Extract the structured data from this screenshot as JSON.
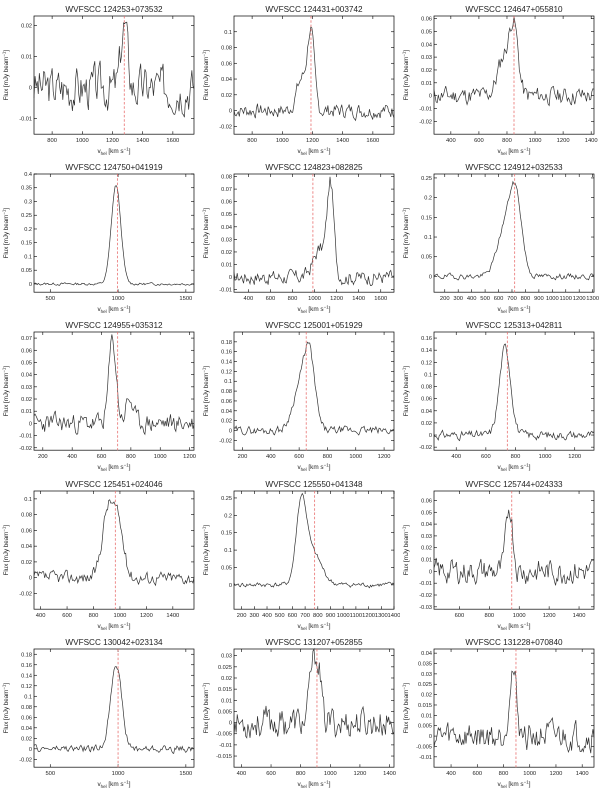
{
  "axis_text": {
    "xlabel_main": "v",
    "xlabel_sub": "hel",
    "xlabel_unit": "[km s",
    "xlabel_sup": "−1",
    "xlabel_close": "]",
    "ylabel_main": "Flux [mJy beam",
    "ylabel_sup": "−1",
    "ylabel_close": "]"
  },
  "colors": {
    "spectrum": "#333333",
    "marker": "#e8706f",
    "axes": "#000000"
  },
  "chart_data": [
    {
      "type": "line",
      "title": "WVFSCC 124253+073532",
      "xlim": [
        680,
        1740
      ],
      "ylim": [
        -0.015,
        0.023
      ],
      "xticks": [
        800,
        1000,
        1200,
        1400,
        1600
      ],
      "yticks": [
        -0.01,
        0,
        0.01,
        0.02
      ],
      "marker_v": 1278,
      "grid": false,
      "features": [
        [
          1278,
          0.02,
          22
        ]
      ],
      "noise": 0.006,
      "seed": 3
    },
    {
      "type": "line",
      "title": "WVFSCC 124431+003742",
      "xlim": [
        680,
        1740
      ],
      "ylim": [
        -0.03,
        0.12
      ],
      "xticks": [
        800,
        1000,
        1200,
        1400,
        1600
      ],
      "yticks": [
        -0.02,
        0,
        0.02,
        0.04,
        0.06,
        0.08,
        0.1
      ],
      "marker_v": 1190,
      "grid": false,
      "features": [
        [
          1130,
          0.04,
          35
        ],
        [
          1190,
          0.095,
          22
        ]
      ],
      "noise": 0.008,
      "seed": 7
    },
    {
      "type": "line",
      "title": "WVFSCC 124647+055810",
      "xlim": [
        280,
        1420
      ],
      "ylim": [
        -0.03,
        0.062
      ],
      "xticks": [
        400,
        600,
        800,
        1000,
        1200,
        1400
      ],
      "yticks": [
        -0.02,
        -0.01,
        0,
        0.01,
        0.02,
        0.03,
        0.04,
        0.05,
        0.06
      ],
      "marker_v": 850,
      "grid": false,
      "features": [
        [
          780,
          0.03,
          45
        ],
        [
          850,
          0.05,
          30
        ]
      ],
      "noise": 0.006,
      "seed": 11
    },
    {
      "type": "line",
      "title": "WVFSCC 124750+041919",
      "xlim": [
        380,
        1560
      ],
      "ylim": [
        -0.03,
        0.4
      ],
      "xticks": [
        500,
        1000,
        1500
      ],
      "yticks": [
        0,
        0.05,
        0.1,
        0.15,
        0.2,
        0.25,
        0.3,
        0.35,
        0.4
      ],
      "marker_v": 995,
      "grid": false,
      "features": [
        [
          985,
          0.36,
          35
        ]
      ],
      "noise": 0.004,
      "seed": 13
    },
    {
      "type": "line",
      "title": "WVFSCC 124823+082825",
      "xlim": [
        270,
        1720
      ],
      "ylim": [
        -0.012,
        0.082
      ],
      "xticks": [
        400,
        600,
        800,
        1000,
        1200,
        1400,
        1600
      ],
      "yticks": [
        -0.01,
        0,
        0.01,
        0.02,
        0.03,
        0.04,
        0.05,
        0.06,
        0.07,
        0.08
      ],
      "marker_v": 985,
      "grid": false,
      "features": [
        [
          1050,
          0.022,
          60
        ],
        [
          1145,
          0.07,
          30
        ]
      ],
      "noise": 0.005,
      "seed": 17
    },
    {
      "type": "line",
      "title": "WVFSCC 124912+032533",
      "xlim": [
        120,
        1310
      ],
      "ylim": [
        -0.04,
        0.26
      ],
      "xticks": [
        200,
        300,
        400,
        500,
        600,
        700,
        800,
        900,
        1000,
        1100,
        1200,
        1300
      ],
      "yticks": [
        0,
        0.05,
        0.1,
        0.15,
        0.2,
        0.25
      ],
      "marker_v": 720,
      "grid": false,
      "features": [
        [
          650,
          0.12,
          60
        ],
        [
          730,
          0.18,
          45
        ]
      ],
      "noise": 0.006,
      "seed": 19
    },
    {
      "type": "line",
      "title": "WVFSCC 124955+035312",
      "xlim": [
        140,
        1230
      ],
      "ylim": [
        -0.022,
        0.075
      ],
      "xticks": [
        200,
        400,
        600,
        800,
        1000,
        1200
      ],
      "yticks": [
        -0.02,
        -0.01,
        0,
        0.01,
        0.02,
        0.03,
        0.04,
        0.05,
        0.06,
        0.07
      ],
      "marker_v": 710,
      "grid": false,
      "features": [
        [
          675,
          0.068,
          25
        ],
        [
          790,
          0.02,
          25
        ]
      ],
      "noise": 0.007,
      "seed": 23
    },
    {
      "type": "line",
      "title": "WVFSCC 125001+051929",
      "xlim": [
        140,
        1270
      ],
      "ylim": [
        -0.04,
        0.2
      ],
      "xticks": [
        200,
        400,
        600,
        800,
        1000,
        1200
      ],
      "yticks": [
        -0.02,
        0,
        0.02,
        0.04,
        0.06,
        0.08,
        0.1,
        0.12,
        0.14,
        0.16,
        0.18
      ],
      "marker_v": 650,
      "grid": false,
      "features": [
        [
          590,
          0.07,
          45
        ],
        [
          670,
          0.16,
          40
        ]
      ],
      "noise": 0.007,
      "seed": 29
    },
    {
      "type": "line",
      "title": "WVFSCC 125313+042811",
      "xlim": [
        250,
        1330
      ],
      "ylim": [
        -0.025,
        0.17
      ],
      "xticks": [
        400,
        600,
        800,
        1000,
        1200
      ],
      "yticks": [
        -0.02,
        0,
        0.02,
        0.04,
        0.06,
        0.08,
        0.1,
        0.12,
        0.14,
        0.16
      ],
      "marker_v": 745,
      "grid": false,
      "features": [
        [
          730,
          0.145,
          38
        ]
      ],
      "noise": 0.006,
      "seed": 31
    },
    {
      "type": "line",
      "title": "WVFSCC 125451+024046",
      "xlim": [
        350,
        1560
      ],
      "ylim": [
        -0.04,
        0.11
      ],
      "xticks": [
        400,
        600,
        800,
        1000,
        1200,
        1400
      ],
      "yticks": [
        -0.02,
        0,
        0.02,
        0.04,
        0.06,
        0.08,
        0.1
      ],
      "marker_v": 965,
      "grid": false,
      "features": [
        [
          910,
          0.085,
          45
        ],
        [
          990,
          0.06,
          40
        ]
      ],
      "noise": 0.007,
      "seed": 37
    },
    {
      "type": "line",
      "title": "WVFSCC 125550+041348",
      "xlim": [
        140,
        1400
      ],
      "ylim": [
        -0.07,
        0.27
      ],
      "xticks": [
        200,
        300,
        400,
        500,
        600,
        700,
        800,
        900,
        1000,
        1100,
        1200,
        1300,
        1400
      ],
      "yticks": [
        0,
        0.05,
        0.1,
        0.15,
        0.2,
        0.25
      ],
      "marker_v": 775,
      "grid": false,
      "features": [
        [
          670,
          0.22,
          40
        ],
        [
          760,
          0.09,
          70
        ]
      ],
      "noise": 0.006,
      "seed": 41
    },
    {
      "type": "line",
      "title": "WVFSCC 125744+024333",
      "xlim": [
        430,
        1500
      ],
      "ylim": [
        -0.032,
        0.068
      ],
      "xticks": [
        600,
        800,
        1000,
        1200,
        1400
      ],
      "yticks": [
        -0.03,
        -0.02,
        -0.01,
        0,
        0.01,
        0.02,
        0.03,
        0.04,
        0.05,
        0.06
      ],
      "marker_v": 950,
      "grid": false,
      "features": [
        [
          935,
          0.055,
          22
        ]
      ],
      "noise": 0.009,
      "seed": 43
    },
    {
      "type": "line",
      "title": "WVFSCC 130042+023134",
      "xlim": [
        380,
        1560
      ],
      "ylim": [
        -0.035,
        0.19
      ],
      "xticks": [
        500,
        1000,
        1500
      ],
      "yticks": [
        -0.02,
        0,
        0.02,
        0.04,
        0.06,
        0.08,
        0.1,
        0.12,
        0.14,
        0.16,
        0.18
      ],
      "marker_v": 1000,
      "grid": false,
      "features": [
        [
          985,
          0.165,
          40
        ]
      ],
      "noise": 0.006,
      "seed": 47
    },
    {
      "type": "line",
      "title": "WVFSCC 131207+052855",
      "xlim": [
        350,
        1430
      ],
      "ylim": [
        -0.02,
        0.033
      ],
      "xticks": [
        400,
        600,
        800,
        1000,
        1200,
        1400
      ],
      "yticks": [
        -0.015,
        -0.01,
        -0.005,
        0,
        0.005,
        0.01,
        0.015,
        0.02,
        0.025,
        0.03
      ],
      "marker_v": 910,
      "grid": false,
      "features": [
        [
          880,
          0.025,
          20
        ],
        [
          920,
          0.025,
          18
        ]
      ],
      "noise": 0.006,
      "seed": 53
    },
    {
      "type": "line",
      "title": "WVFSCC 131228+070840",
      "xlim": [
        270,
        1490
      ],
      "ylim": [
        -0.015,
        0.042
      ],
      "xticks": [
        400,
        600,
        800,
        1000,
        1200,
        1400
      ],
      "yticks": [
        -0.01,
        -0.005,
        0,
        0.005,
        0.01,
        0.015,
        0.02,
        0.025,
        0.03,
        0.035,
        0.04
      ],
      "marker_v": 895,
      "grid": false,
      "features": [
        [
          870,
          0.032,
          28
        ]
      ],
      "noise": 0.006,
      "seed": 59
    }
  ]
}
